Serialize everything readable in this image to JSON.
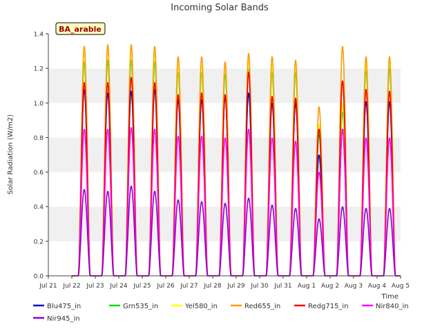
{
  "chart_data": {
    "type": "line",
    "title": "Incoming Solar Bands",
    "xlabel": "Time",
    "ylabel": "Solar Radiation (W/m2)",
    "site_label": "BA_arable",
    "ylim": [
      0,
      1.4
    ],
    "xlim": [
      "Jul 21",
      "Aug 5"
    ],
    "yticks": [
      0.0,
      0.2,
      0.4,
      0.6,
      0.8,
      1.0,
      1.2,
      1.4
    ],
    "ytick_labels": [
      "0.0",
      "0.2",
      "0.4",
      "0.6",
      "0.8",
      "1.0",
      "1.2",
      "1.4"
    ],
    "xtick_labels": [
      "Jul 21",
      "Jul 22",
      "Jul 23",
      "Jul 24",
      "Jul 25",
      "Jul 26",
      "Jul 27",
      "Jul 28",
      "Jul 29",
      "Jul 30",
      "Jul 31",
      "Aug 1",
      "Aug 2",
      "Aug 3",
      "Aug 4",
      "Aug 5"
    ],
    "grid": "horizontal bands",
    "legend_position": "bottom",
    "days": [
      "Jul 22",
      "Jul 23",
      "Jul 24",
      "Jul 25",
      "Jul 26",
      "Jul 27",
      "Jul 28",
      "Jul 29",
      "Jul 30",
      "Jul 31",
      "Aug 1",
      "Aug 2",
      "Aug 3",
      "Aug 4"
    ],
    "series": [
      {
        "name": "Blu475_in",
        "color": "#0000cc",
        "daily_peak": [
          1.08,
          1.06,
          1.07,
          1.08,
          1.02,
          1.02,
          1.04,
          1.06,
          1.0,
          1.0,
          0.7,
          0.85,
          1.01,
          1.01
        ]
      },
      {
        "name": "Grn535_in",
        "color": "#00dd00",
        "daily_peak": [
          1.24,
          1.25,
          1.25,
          1.24,
          1.18,
          1.18,
          1.17,
          1.2,
          1.18,
          1.18,
          0.82,
          0.95,
          1.19,
          1.2
        ]
      },
      {
        "name": "Yel580_in",
        "color": "#ffff00",
        "daily_peak": [
          1.29,
          1.31,
          1.3,
          1.29,
          1.22,
          1.22,
          1.21,
          1.25,
          1.22,
          1.22,
          0.88,
          1.0,
          1.23,
          1.24
        ]
      },
      {
        "name": "Red655_in",
        "color": "#ff9900",
        "daily_peak": [
          1.33,
          1.34,
          1.34,
          1.33,
          1.27,
          1.27,
          1.24,
          1.29,
          1.27,
          1.25,
          0.98,
          1.33,
          1.27,
          1.27
        ]
      },
      {
        "name": "Redg715_in",
        "color": "#ee0000",
        "daily_peak": [
          1.12,
          1.12,
          1.15,
          1.12,
          1.05,
          1.06,
          1.05,
          1.18,
          1.04,
          1.03,
          0.85,
          1.13,
          1.08,
          1.07
        ]
      },
      {
        "name": "Nir840_in",
        "color": "#ff00ff",
        "daily_peak": [
          0.85,
          0.85,
          0.86,
          0.85,
          0.81,
          0.81,
          0.8,
          0.85,
          0.8,
          0.78,
          0.6,
          0.85,
          0.8,
          0.8
        ]
      },
      {
        "name": "Nir945_in",
        "color": "#8800cc",
        "daily_peak": [
          0.5,
          0.49,
          0.52,
          0.49,
          0.44,
          0.43,
          0.42,
          0.45,
          0.41,
          0.39,
          0.33,
          0.4,
          0.39,
          0.39
        ]
      }
    ]
  }
}
